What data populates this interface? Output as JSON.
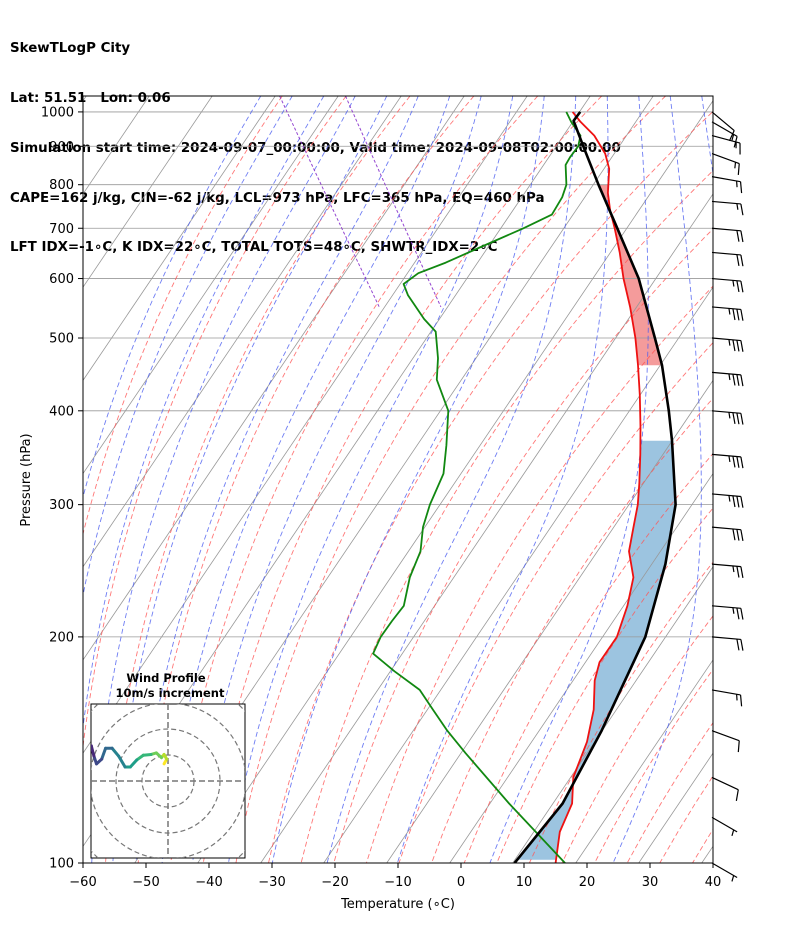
{
  "header": {
    "title": "SkewTLogP City",
    "location": "Lat: 51.51   Lon: 0.06",
    "times": "Simulation start time: 2024-09-07_00:00:00, Valid time: 2024-09-08T02:00:00.00",
    "indices1": "CAPE=162 j/kg, CIN=-62 j/kg, LCL=973 hPa, LFC=365 hPa, EQ=460 hPa",
    "indices2": "LFT IDX=-1∘C, K IDX=22∘C, TOTAL TOTS=48∘C, SHWTR_IDX=2∘C"
  },
  "chart_data": {
    "type": "skewt",
    "xlabel": "Temperature (∘C)",
    "ylabel": "Pressure (hPa)",
    "xlim": [
      -60,
      40
    ],
    "ylim": [
      1050,
      100
    ],
    "x_ticks": [
      "−60",
      "−50",
      "−40",
      "−30",
      "−20",
      "−10",
      "0",
      "10",
      "20",
      "30",
      "40"
    ],
    "x_tick_values": [
      -60,
      -50,
      -40,
      -30,
      -20,
      -10,
      0,
      10,
      20,
      30,
      40
    ],
    "y_ticks": [
      "1000",
      "900",
      "800",
      "700",
      "600",
      "500",
      "400",
      "300",
      "200",
      "100"
    ],
    "y_tick_values": [
      1000,
      900,
      800,
      700,
      600,
      500,
      400,
      300,
      200,
      100
    ],
    "colors": {
      "temperature": "#ee1111",
      "dewpoint": "#118811",
      "parcel": "#000000",
      "cape": "#7bb0d6",
      "cin": "#f07a7a",
      "dry_adiabat": "#ff5555",
      "moist_adiabat": "#4a5cf0",
      "mixing_ratio": "#8833cc",
      "isotherm": "#999999"
    },
    "temperature": [
      {
        "p": 1000,
        "t": 17.8
      },
      {
        "p": 970,
        "t": 18.0
      },
      {
        "p": 930,
        "t": 18.7
      },
      {
        "p": 880,
        "t": 18.5
      },
      {
        "p": 840,
        "t": 17.5
      },
      {
        "p": 780,
        "t": 14.7
      },
      {
        "p": 740,
        "t": 13.2
      },
      {
        "p": 700,
        "t": 12.0
      },
      {
        "p": 650,
        "t": 10.2
      },
      {
        "p": 600,
        "t": 8.0
      },
      {
        "p": 550,
        "t": 6.0
      },
      {
        "p": 500,
        "t": 3.5
      },
      {
        "p": 460,
        "t": 1.0
      },
      {
        "p": 420,
        "t": -1.9
      },
      {
        "p": 380,
        "t": -5.3
      },
      {
        "p": 350,
        "t": -8.2
      },
      {
        "p": 320,
        "t": -11.5
      },
      {
        "p": 300,
        "t": -14.0
      },
      {
        "p": 280,
        "t": -17.1
      },
      {
        "p": 260,
        "t": -20.4
      },
      {
        "p": 240,
        "t": -22.5
      },
      {
        "p": 220,
        "t": -26.5
      },
      {
        "p": 200,
        "t": -31.5
      },
      {
        "p": 185,
        "t": -37.0
      },
      {
        "p": 175,
        "t": -39.7
      },
      {
        "p": 160,
        "t": -43.0
      },
      {
        "p": 145,
        "t": -47.5
      },
      {
        "p": 130,
        "t": -53.5
      },
      {
        "p": 120,
        "t": -56.5
      },
      {
        "p": 110,
        "t": -61.5
      },
      {
        "p": 100,
        "t": -65.5
      }
    ],
    "dewpoint": [
      {
        "p": 1000,
        "t": 16.8
      },
      {
        "p": 970,
        "t": 16.5
      },
      {
        "p": 930,
        "t": 16.5
      },
      {
        "p": 900,
        "t": 15.0
      },
      {
        "p": 870,
        "t": 12.5
      },
      {
        "p": 850,
        "t": 11.0
      },
      {
        "p": 800,
        "t": 9.0
      },
      {
        "p": 770,
        "t": 7.0
      },
      {
        "p": 730,
        "t": 3.5
      },
      {
        "p": 700,
        "t": -2.5
      },
      {
        "p": 660,
        "t": -11.5
      },
      {
        "p": 630,
        "t": -18.5
      },
      {
        "p": 610,
        "t": -24.0
      },
      {
        "p": 590,
        "t": -27.5
      },
      {
        "p": 570,
        "t": -28.0
      },
      {
        "p": 530,
        "t": -28.0
      },
      {
        "p": 510,
        "t": -27.5
      },
      {
        "p": 470,
        "t": -30.0
      },
      {
        "p": 440,
        "t": -32.5
      },
      {
        "p": 400,
        "t": -34.0
      },
      {
        "p": 360,
        "t": -38.0
      },
      {
        "p": 330,
        "t": -41.5
      },
      {
        "p": 300,
        "t": -47.0
      },
      {
        "p": 280,
        "t": -50.5
      },
      {
        "p": 260,
        "t": -53.5
      },
      {
        "p": 240,
        "t": -58.0
      },
      {
        "p": 220,
        "t": -62.0
      },
      {
        "p": 210,
        "t": -65.5
      },
      {
        "p": 200,
        "t": -69.0
      },
      {
        "p": 190,
        "t": -72.0
      },
      {
        "p": 180,
        "t": -70.5
      },
      {
        "p": 170,
        "t": -68.5
      },
      {
        "p": 160,
        "t": -68.5
      },
      {
        "p": 150,
        "t": -68.5
      },
      {
        "p": 140,
        "t": -68.0
      },
      {
        "p": 120,
        "t": -66.5
      },
      {
        "p": 100,
        "t": -64.0
      }
    ],
    "parcel": [
      {
        "p": 1000,
        "t": 19.0
      },
      {
        "p": 973,
        "t": 17.0
      },
      {
        "p": 900,
        "t": 15.8
      },
      {
        "p": 800,
        "t": 14.1
      },
      {
        "p": 700,
        "t": 12.4
      },
      {
        "p": 600,
        "t": 10.4
      },
      {
        "p": 500,
        "t": 6.6
      },
      {
        "p": 460,
        "t": 4.8
      },
      {
        "p": 400,
        "t": 1.0
      },
      {
        "p": 365,
        "t": -1.7
      },
      {
        "p": 300,
        "t": -8.0
      },
      {
        "p": 250,
        "t": -16.0
      },
      {
        "p": 200,
        "t": -27.0
      },
      {
        "p": 150,
        "t": -44.0
      },
      {
        "p": 120,
        "t": -58.0
      },
      {
        "p": 100,
        "t": -72.0
      }
    ],
    "wind_barbs": [
      {
        "p": 1000,
        "speed_kt": 10,
        "dir": 130
      },
      {
        "p": 970,
        "speed_kt": 15,
        "dir": 120
      },
      {
        "p": 930,
        "speed_kt": 15,
        "dir": 105
      },
      {
        "p": 880,
        "speed_kt": 15,
        "dir": 110
      },
      {
        "p": 820,
        "speed_kt": 15,
        "dir": 100
      },
      {
        "p": 760,
        "speed_kt": 15,
        "dir": 95
      },
      {
        "p": 700,
        "speed_kt": 20,
        "dir": 95
      },
      {
        "p": 650,
        "speed_kt": 20,
        "dir": 95
      },
      {
        "p": 600,
        "speed_kt": 25,
        "dir": 95
      },
      {
        "p": 550,
        "speed_kt": 35,
        "dir": 95
      },
      {
        "p": 500,
        "speed_kt": 35,
        "dir": 95
      },
      {
        "p": 450,
        "speed_kt": 35,
        "dir": 95
      },
      {
        "p": 400,
        "speed_kt": 35,
        "dir": 95
      },
      {
        "p": 350,
        "speed_kt": 35,
        "dir": 95
      },
      {
        "p": 310,
        "speed_kt": 35,
        "dir": 95
      },
      {
        "p": 280,
        "speed_kt": 30,
        "dir": 95
      },
      {
        "p": 250,
        "speed_kt": 25,
        "dir": 95
      },
      {
        "p": 220,
        "speed_kt": 25,
        "dir": 95
      },
      {
        "p": 200,
        "speed_kt": 20,
        "dir": 95
      },
      {
        "p": 170,
        "speed_kt": 15,
        "dir": 100
      },
      {
        "p": 150,
        "speed_kt": 10,
        "dir": 110
      },
      {
        "p": 130,
        "speed_kt": 10,
        "dir": 115
      },
      {
        "p": 115,
        "speed_kt": 5,
        "dir": 120
      },
      {
        "p": 100,
        "speed_kt": 5,
        "dir": 120
      }
    ],
    "hodograph": {
      "title": "Wind Profile",
      "subtitle": "10m/s increment",
      "ring_increment_ms": 10,
      "rings": 4,
      "u": [
        -1.5,
        -0.5,
        -1.5,
        -2.5,
        -4.5,
        -6.5,
        -9.5,
        -12.0,
        -14.5,
        -16.5,
        -19.0,
        -21.5,
        -24.0,
        -25.5,
        -27.5,
        -28.5,
        -29.5,
        -31.0,
        -33.0,
        -32.5
      ],
      "v": [
        2.2,
        2.8,
        3.4,
        3.0,
        3.6,
        3.4,
        3.3,
        2.7,
        1.8,
        1.8,
        3.2,
        4.2,
        4.2,
        2.8,
        2.2,
        3.2,
        4.5,
        4.5,
        3.8,
        2.4
      ]
    }
  }
}
